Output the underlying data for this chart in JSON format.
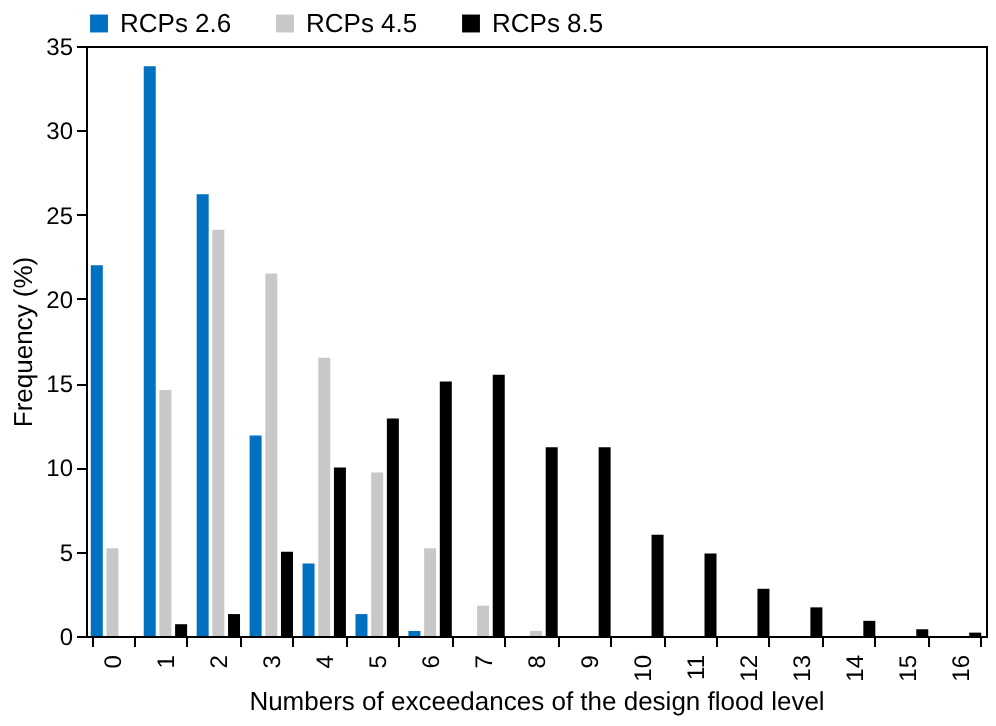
{
  "chart_data": {
    "type": "bar",
    "xlabel": "Numbers of exceedances of the design flood level",
    "ylabel": "Frequency (%)",
    "categories": [
      "0",
      "1",
      "2",
      "3",
      "4",
      "5",
      "6",
      "7",
      "8",
      "9",
      "10",
      "11",
      "12",
      "13",
      "14",
      "15",
      "16"
    ],
    "series": [
      {
        "name": "RCPs 2.6",
        "color": "#0070c0",
        "values": [
          22,
          33.8,
          26.2,
          11.9,
          4.3,
          1.3,
          0.3,
          0,
          0,
          0,
          0,
          0,
          0,
          0,
          0,
          0,
          0
        ]
      },
      {
        "name": "RCPs 4.5",
        "color": "#c8c8c8",
        "values": [
          5.2,
          14.6,
          24.1,
          21.5,
          16.5,
          9.7,
          5.2,
          1.8,
          0.3,
          null,
          0,
          0,
          null,
          0,
          0,
          0,
          0
        ]
      },
      {
        "name": "RCPs 8.5",
        "color": "#000000",
        "values": [
          0,
          0.7,
          1.3,
          5.0,
          10.0,
          12.9,
          15.1,
          15.5,
          11.2,
          11.2,
          6.0,
          4.9,
          2.8,
          1.7,
          0.9,
          0.4,
          0.2
        ]
      }
    ],
    "ylim": [
      0,
      35
    ],
    "yticks": [
      0,
      5,
      10,
      15,
      20,
      25,
      30,
      35
    ],
    "grid": false,
    "legend": "top"
  }
}
